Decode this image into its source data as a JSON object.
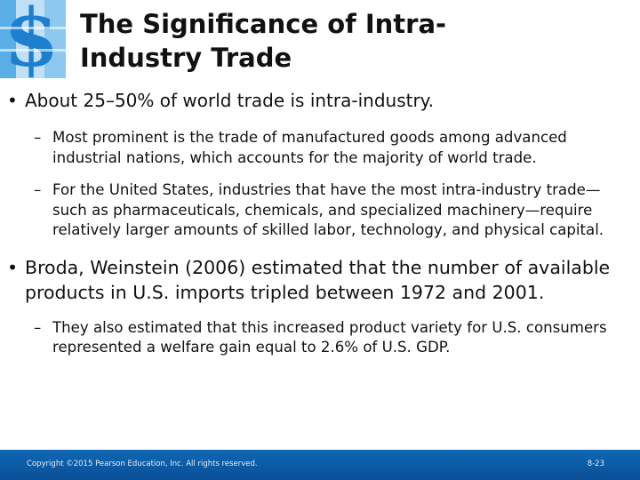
{
  "slide": {
    "title_line1": "The Significance of Intra-",
    "title_line2": "Industry Trade",
    "bullet_mark": "•",
    "sub_mark": "–",
    "bullets": [
      {
        "text": "About 25–50% of world trade is intra-industry.",
        "subs": [
          "Most prominent is the trade of manufactured goods among advanced industrial nations, which accounts for the majority of world trade.",
          "For the United States, industries that have the most intra-industry trade—such as pharmaceuticals, chemicals, and specialized machinery—require relatively larger amounts of skilled labor, technology, and physical capital."
        ]
      },
      {
        "text": "Broda, Weinstein (2006) estimated that the number of available products in U.S. imports tripled between 1972 and 2001.",
        "subs": [
          "They also estimated that this increased product variety for U.S. consumers represented a welfare gain equal to 2.6% of U.S. GDP."
        ]
      }
    ]
  },
  "footer": {
    "copyright": "Copyright ©2015 Pearson Education, Inc. All rights reserved.",
    "page_number": "8-23"
  },
  "colors": {
    "footer_bar": "#0b5aa6",
    "logo_blue": "#2a8fd6"
  }
}
